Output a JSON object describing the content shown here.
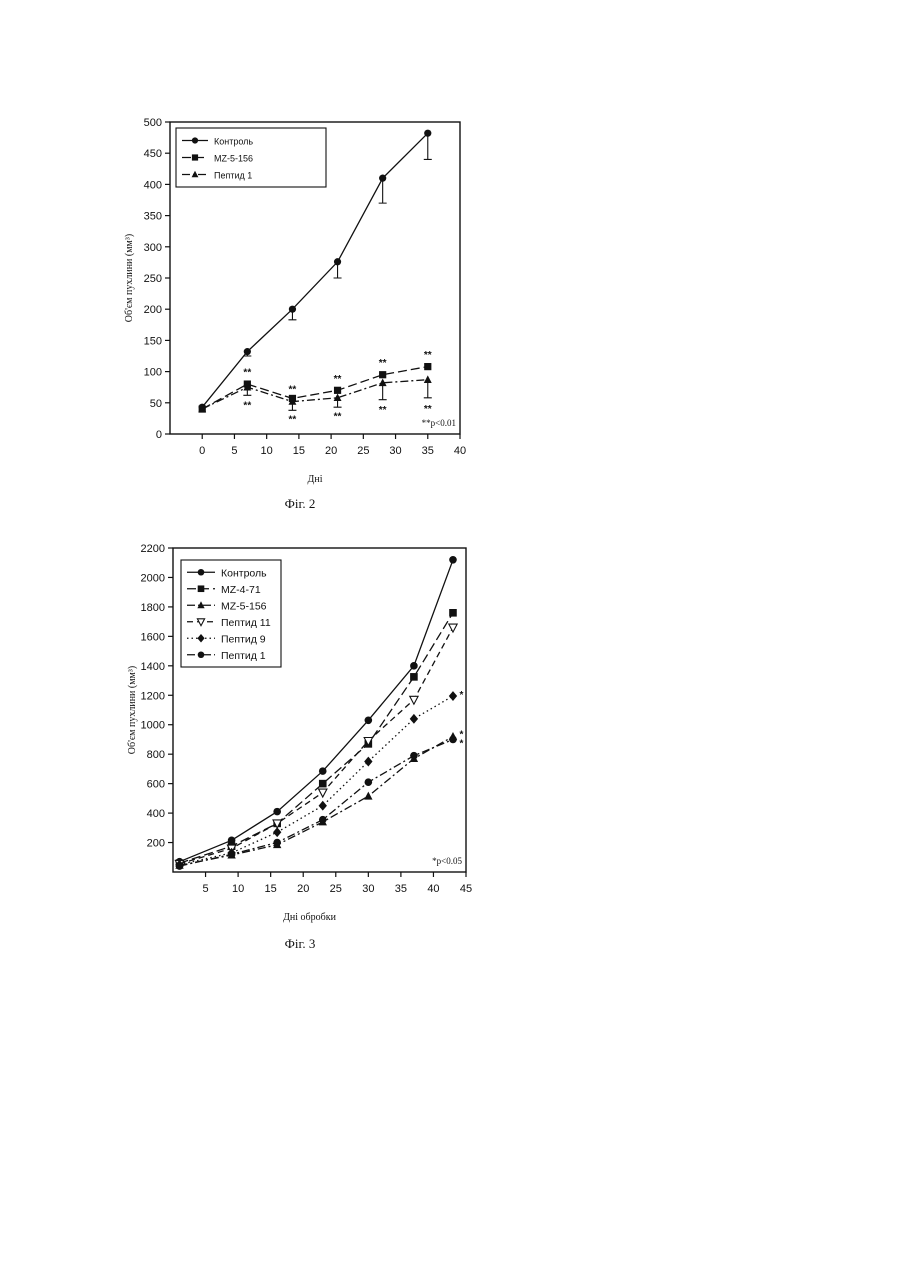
{
  "chart_data": [
    {
      "type": "line",
      "caption": "Фіг. 2",
      "xlabel": "Дні",
      "ylabel": "Об'єм пухлини (мм³)",
      "xlim": [
        -5,
        40
      ],
      "ylim": [
        0,
        500
      ],
      "x_ticks": [
        0,
        5,
        10,
        15,
        20,
        25,
        30,
        35,
        40
      ],
      "y_ticks": [
        0,
        50,
        100,
        150,
        200,
        250,
        300,
        350,
        400,
        450,
        500
      ],
      "legend_position": "top-left",
      "note": "**p<0.01",
      "series": [
        {
          "name": "Контроль",
          "marker": "circle",
          "dash": "solid",
          "points": [
            [
              0,
              43
            ],
            [
              7,
              132
            ],
            [
              14,
              200
            ],
            [
              21,
              276
            ],
            [
              28,
              410
            ],
            [
              35,
              482
            ]
          ],
          "errors": [
            [
              7,
              125
            ],
            [
              14,
              183
            ],
            [
              21,
              250
            ],
            [
              28,
              370
            ],
            [
              35,
              440
            ]
          ]
        },
        {
          "name": "MZ-5-156",
          "marker": "square",
          "dash": "long",
          "points": [
            [
              0,
              40
            ],
            [
              7,
              80
            ],
            [
              14,
              57
            ],
            [
              21,
              70
            ],
            [
              28,
              95
            ],
            [
              35,
              108
            ]
          ]
        },
        {
          "name": "Пептид 1",
          "marker": "triangle",
          "dash": "dashdot",
          "points": [
            [
              0,
              40
            ],
            [
              7,
              75
            ],
            [
              14,
              52
            ],
            [
              21,
              58
            ],
            [
              28,
              82
            ],
            [
              35,
              87
            ]
          ],
          "errors": [
            [
              7,
              62
            ],
            [
              14,
              38
            ],
            [
              21,
              43
            ],
            [
              28,
              55
            ],
            [
              35,
              58
            ]
          ]
        }
      ],
      "annotations": [
        {
          "text": "**",
          "x": 7,
          "y": 100
        },
        {
          "text": "**",
          "x": 7,
          "y": 47
        },
        {
          "text": "**",
          "x": 14,
          "y": 73
        },
        {
          "text": "**",
          "x": 14,
          "y": 25
        },
        {
          "text": "**",
          "x": 21,
          "y": 90
        },
        {
          "text": "**",
          "x": 21,
          "y": 30
        },
        {
          "text": "**",
          "x": 28,
          "y": 115
        },
        {
          "text": "**",
          "x": 28,
          "y": 40
        },
        {
          "text": "**",
          "x": 35,
          "y": 128
        },
        {
          "text": "**",
          "x": 35,
          "y": 42
        }
      ]
    },
    {
      "type": "line",
      "caption": "Фіг. 3",
      "xlabel": "Дні обробки",
      "ylabel": "Об'єм пухлини (мм³)",
      "xlim": [
        0,
        45
      ],
      "ylim": [
        0,
        2200
      ],
      "x_ticks": [
        5,
        10,
        15,
        20,
        25,
        30,
        35,
        40,
        45
      ],
      "y_ticks": [
        200,
        400,
        600,
        800,
        1000,
        1200,
        1400,
        1600,
        1800,
        2000,
        2200
      ],
      "legend_position": "top-left",
      "note": "*p<0.05",
      "series": [
        {
          "name": "Контроль",
          "marker": "circle",
          "dash": "solid",
          "points": [
            [
              1,
              70
            ],
            [
              9,
              215
            ],
            [
              16,
              410
            ],
            [
              23,
              685
            ],
            [
              30,
              1030
            ],
            [
              37,
              1400
            ],
            [
              43,
              2120
            ]
          ]
        },
        {
          "name": "MZ-4-71",
          "marker": "square",
          "dash": "long",
          "points": [
            [
              1,
              60
            ],
            [
              9,
              175
            ],
            [
              16,
              330
            ],
            [
              23,
              600
            ],
            [
              30,
              870
            ],
            [
              37,
              1325
            ],
            [
              43,
              1760
            ]
          ]
        },
        {
          "name": "MZ-5-156",
          "marker": "triangle",
          "dash": "dashdot",
          "points": [
            [
              1,
              45
            ],
            [
              9,
              115
            ],
            [
              16,
              185
            ],
            [
              23,
              340
            ],
            [
              30,
              515
            ],
            [
              37,
              770
            ],
            [
              43,
              920
            ]
          ]
        },
        {
          "name": "Пептид 11",
          "marker": "triangle-open",
          "dash": "dash",
          "points": [
            [
              1,
              55
            ],
            [
              9,
              160
            ],
            [
              16,
              330
            ],
            [
              23,
              540
            ],
            [
              30,
              890
            ],
            [
              37,
              1170
            ],
            [
              43,
              1660
            ]
          ]
        },
        {
          "name": "Пептид 9",
          "marker": "diamond",
          "dash": "dot",
          "points": [
            [
              1,
              50
            ],
            [
              9,
              130
            ],
            [
              16,
              270
            ],
            [
              23,
              450
            ],
            [
              30,
              750
            ],
            [
              37,
              1040
            ],
            [
              43,
              1195
            ]
          ]
        },
        {
          "name": "Пептид 1",
          "marker": "circle",
          "dash": "dashdot",
          "points": [
            [
              1,
              40
            ],
            [
              9,
              120
            ],
            [
              16,
              200
            ],
            [
              23,
              355
            ],
            [
              30,
              610
            ],
            [
              37,
              790
            ],
            [
              43,
              900
            ]
          ]
        }
      ],
      "annotations": [
        {
          "text": "*",
          "x": 44.3,
          "y": 1210
        },
        {
          "text": "*",
          "x": 44.3,
          "y": 940
        },
        {
          "text": "*",
          "x": 44.3,
          "y": 880
        }
      ]
    }
  ]
}
